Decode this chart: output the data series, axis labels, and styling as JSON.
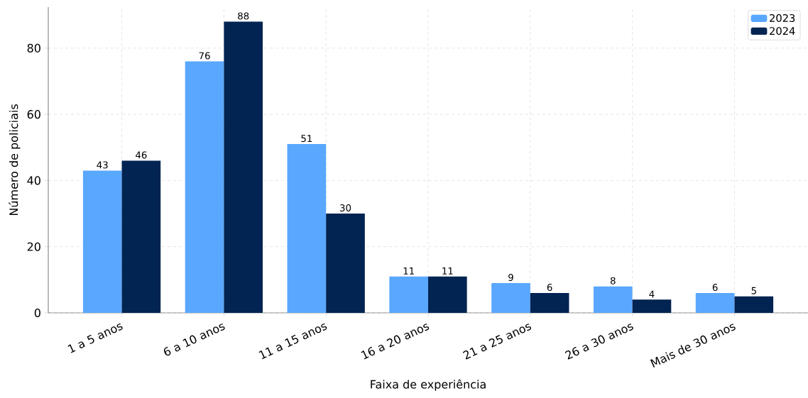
{
  "chart_data": {
    "type": "bar",
    "xlabel": "Faixa de experiência",
    "ylabel": "Número de policiais",
    "categories": [
      "1 a 5 anos",
      "6 a 10 anos",
      "11 a 15 anos",
      "16 a 20 anos",
      "21 a 25 anos",
      "26 a 30 anos",
      "Mais de 30 anos"
    ],
    "series": [
      {
        "name": "2023",
        "color": "#5aa7ff",
        "values": [
          43,
          76,
          51,
          11,
          9,
          8,
          6
        ]
      },
      {
        "name": "2024",
        "color": "#022452",
        "values": [
          46,
          88,
          30,
          11,
          6,
          4,
          5
        ]
      }
    ],
    "ylim": [
      0,
      92.4
    ],
    "yticks": [
      0,
      20,
      40,
      60,
      80
    ],
    "grid": true,
    "legend": "top right",
    "data_labels": true
  }
}
